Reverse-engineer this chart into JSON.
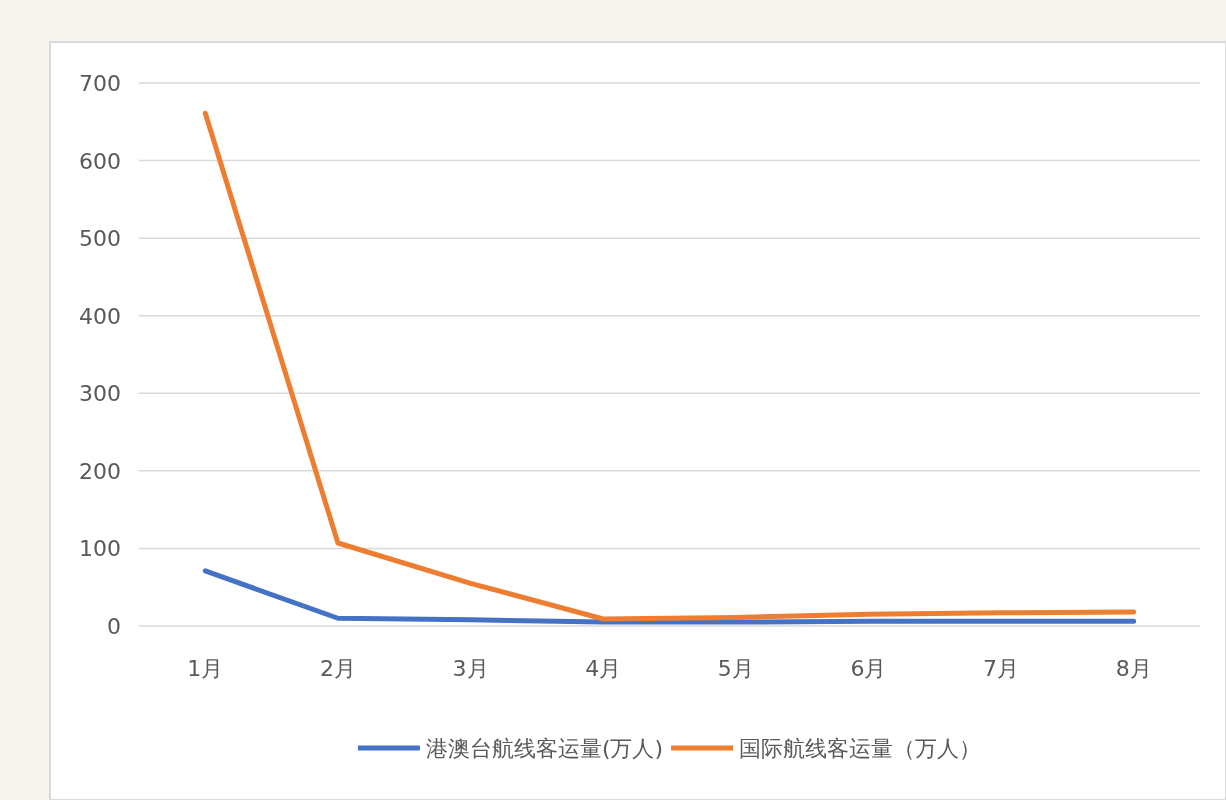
{
  "chart_data": {
    "type": "line",
    "categories": [
      "1月",
      "2月",
      "3月",
      "4月",
      "5月",
      "6月",
      "7月",
      "8月"
    ],
    "series": [
      {
        "name": "港澳台航线客运量(万人)",
        "color": "#4472c4",
        "values": [
          71,
          10,
          8,
          5,
          5,
          6,
          6,
          6
        ]
      },
      {
        "name": "国际航线客运量（万人）",
        "color": "#ed7d31",
        "values": [
          661,
          107,
          55,
          9,
          11,
          15,
          17,
          18
        ]
      }
    ],
    "ylim": [
      0,
      700
    ],
    "yticks": [
      0,
      100,
      200,
      300,
      400,
      500,
      600,
      700
    ],
    "grid": "y",
    "legend": "bottom",
    "marker": "none"
  }
}
